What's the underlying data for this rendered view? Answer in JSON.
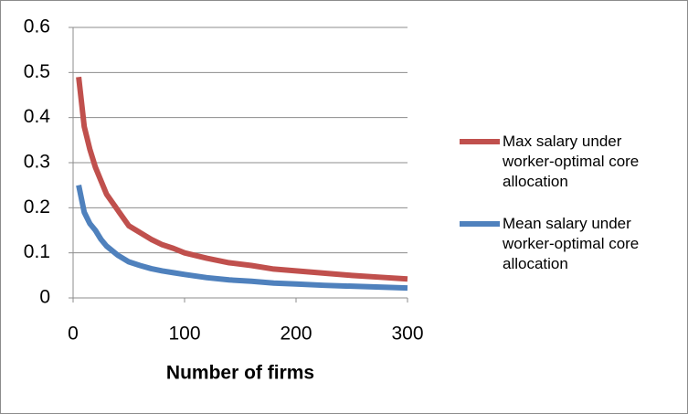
{
  "chart_data": {
    "type": "line",
    "xlabel": "Number of firms",
    "x": [
      5,
      10,
      15,
      20,
      25,
      30,
      40,
      50,
      60,
      70,
      80,
      90,
      100,
      120,
      140,
      160,
      180,
      200,
      225,
      250,
      275,
      300
    ],
    "series": [
      {
        "name": "Max salary under worker-optimal core allocation",
        "color": "#c0504d",
        "values": [
          0.49,
          0.38,
          0.33,
          0.29,
          0.26,
          0.23,
          0.195,
          0.16,
          0.145,
          0.13,
          0.118,
          0.11,
          0.1,
          0.088,
          0.078,
          0.072,
          0.064,
          0.06,
          0.055,
          0.05,
          0.046,
          0.042
        ]
      },
      {
        "name": "Mean salary under worker-optimal core allocation",
        "color": "#4f81bd",
        "values": [
          0.25,
          0.19,
          0.165,
          0.15,
          0.13,
          0.115,
          0.095,
          0.08,
          0.072,
          0.065,
          0.06,
          0.056,
          0.052,
          0.045,
          0.04,
          0.037,
          0.033,
          0.031,
          0.028,
          0.026,
          0.024,
          0.022
        ]
      }
    ],
    "xlim": [
      0,
      300
    ],
    "ylim": [
      0,
      0.6
    ],
    "xticks": [
      0,
      100,
      200,
      300
    ],
    "yticks": [
      0,
      0.1,
      0.2,
      0.3,
      0.4,
      0.5,
      0.6
    ],
    "grid": true,
    "legend": "right"
  }
}
